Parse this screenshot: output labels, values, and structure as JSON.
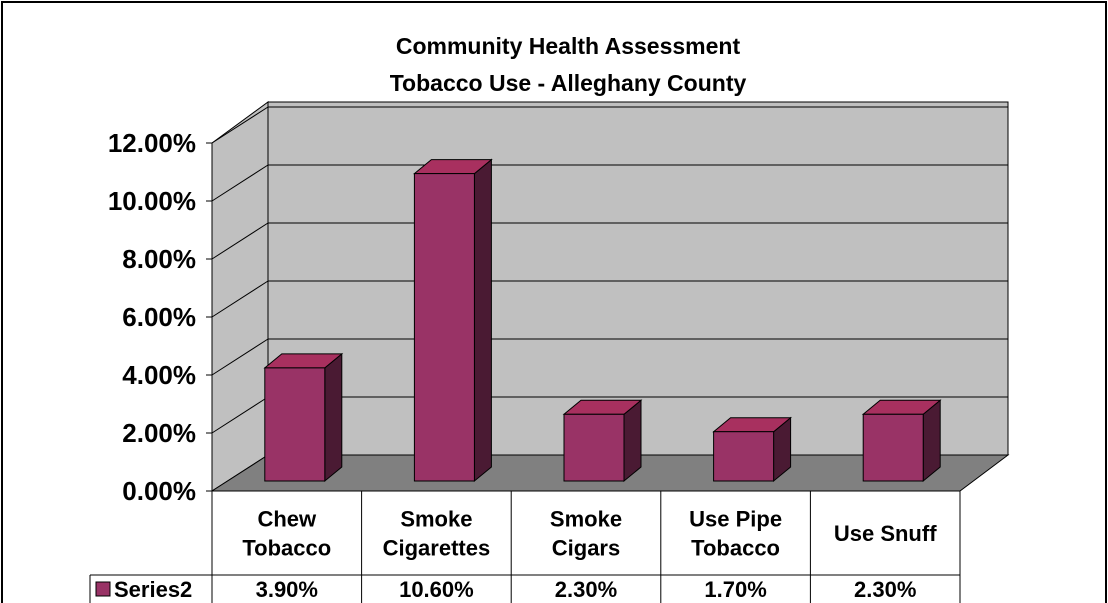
{
  "chart_data": {
    "type": "bar",
    "title_line1": "Community Health Assessment",
    "title_line2": "Tobacco Use - Alleghany County",
    "categories": [
      [
        "Chew",
        "Tobacco"
      ],
      [
        "Smoke",
        "Cigarettes"
      ],
      [
        "Smoke",
        "Cigars"
      ],
      [
        "Use Pipe",
        "Tobacco"
      ],
      [
        "Use Snuff"
      ]
    ],
    "series": [
      {
        "name": "Series2",
        "values": [
          3.9,
          10.6,
          2.3,
          1.7,
          2.3
        ],
        "value_labels": [
          "3.90%",
          "10.60%",
          "2.30%",
          "1.70%",
          "2.30%"
        ]
      }
    ],
    "ylim": [
      0,
      12
    ],
    "yticks": [
      "0.00%",
      "2.00%",
      "4.00%",
      "6.00%",
      "8.00%",
      "10.00%",
      "12.00%"
    ],
    "grid": true,
    "data_table": true,
    "colors": {
      "bar_front": "#993366",
      "bar_top": "#a8305f",
      "bar_side": "#4a1a33",
      "back_wall": "#c0c0c0",
      "floor": "#808080"
    }
  }
}
